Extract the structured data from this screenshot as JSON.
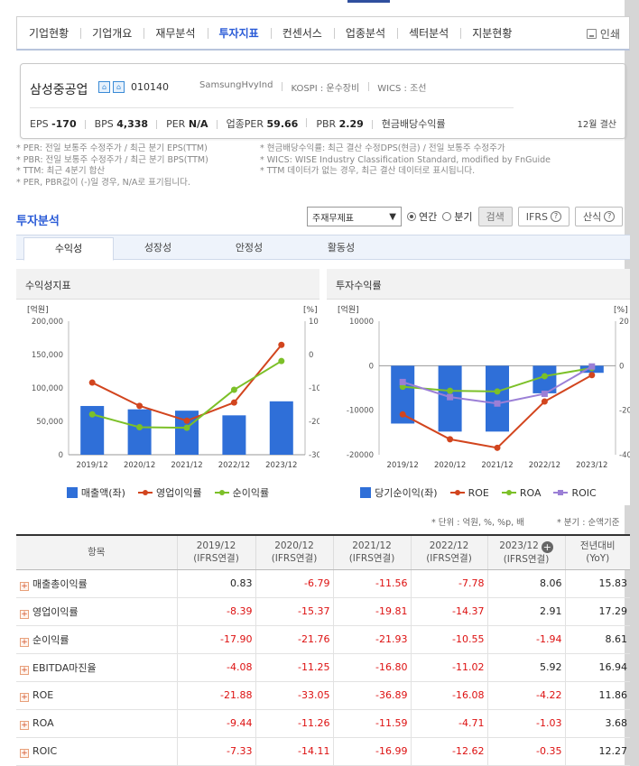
{
  "nav": {
    "tabs": [
      "기업현황",
      "기업개요",
      "재무분석",
      "투자지표",
      "컨센서스",
      "업종분석",
      "섹터분석",
      "지분현황"
    ],
    "active_index": 3,
    "print_label": "인쇄"
  },
  "company": {
    "name": "삼성중공업",
    "code": "010140",
    "eng_name": "SamsungHvyInd",
    "market": "KOSPI : 운수장비",
    "wics": "WICS : 조선",
    "stats": [
      {
        "label": "EPS",
        "value": "-170"
      },
      {
        "label": "BPS",
        "value": "4,338"
      },
      {
        "label": "PER",
        "value": "N/A"
      },
      {
        "label": "업종PER",
        "value": "59.66"
      },
      {
        "label": "PBR",
        "value": "2.29"
      },
      {
        "label": "현금배당수익률",
        "value": ""
      }
    ],
    "settlement": "12월 결산"
  },
  "notes_left": [
    "* PER: 전일 보통주 수정주가 / 최근 분기 EPS(TTM)",
    "* PBR: 전일 보통주 수정주가 / 최근 분기 BPS(TTM)",
    "* TTM: 최근 4분기 합산",
    "* PER, PBR값이 (-)일 경우, N/A로 표기됩니다."
  ],
  "notes_right": [
    "* 현금배당수익률: 최근 결산 수정DPS(현금) / 전일 보통주 수정주가",
    "* WICS: WISE Industry Classification Standard, modified by FnGuide",
    "* TTM 데이터가 없는 경우, 최근 결산 데이터로 표시됩니다."
  ],
  "section": {
    "title": "투자분석",
    "select_value": "주재무제표",
    "radio_annual": "연간",
    "radio_quarter": "분기",
    "search_label": "검색",
    "ifrs_label": "IFRS",
    "formula_label": "산식"
  },
  "subtabs": [
    "수익성",
    "성장성",
    "안정성",
    "활동성"
  ],
  "chart_left": {
    "title": "수익성지표",
    "unit_left": "[억원]",
    "unit_right": "[%]",
    "legend": [
      "매출액(좌)",
      "영업이익률",
      "순이익률"
    ]
  },
  "chart_right": {
    "title": "투자수익률",
    "unit_left": "[억원]",
    "unit_right": "[%]",
    "legend": [
      "당기순이익(좌)",
      "ROE",
      "ROA",
      "ROIC"
    ]
  },
  "colors": {
    "bar": "#2f6fd8",
    "red": "#d2451e",
    "green": "#7cc028",
    "purple": "#9b7fd6",
    "accent": "#2a5bd7"
  },
  "chart_data": [
    {
      "type": "bar",
      "title": "수익성지표",
      "categories": [
        "2019/12",
        "2020/12",
        "2021/12",
        "2022/12",
        "2023/12"
      ],
      "ylim_left": [
        0,
        200000
      ],
      "yticks_left": [
        "200,000",
        "150,000",
        "100,000",
        "50,000",
        "0"
      ],
      "ylim_right": [
        -30,
        10
      ],
      "yticks_right": [
        "10",
        "0",
        "-10",
        "-20",
        "-30"
      ],
      "series": [
        {
          "name": "매출액(좌)",
          "type": "bar",
          "axis": "left",
          "values": [
            73000,
            68000,
            66000,
            59000,
            80000
          ]
        },
        {
          "name": "영업이익률",
          "type": "line",
          "axis": "right",
          "values": [
            -8.39,
            -15.37,
            -19.81,
            -14.37,
            2.91
          ]
        },
        {
          "name": "순이익률",
          "type": "line",
          "axis": "right",
          "values": [
            -17.9,
            -21.76,
            -21.93,
            -10.55,
            -1.94
          ]
        }
      ]
    },
    {
      "type": "bar",
      "title": "투자수익률",
      "categories": [
        "2019/12",
        "2020/12",
        "2021/12",
        "2022/12",
        "2023/12"
      ],
      "ylim_left": [
        -20000,
        10000
      ],
      "yticks_left": [
        "10000",
        "0",
        "-10000",
        "-20000"
      ],
      "ylim_right": [
        -40,
        20
      ],
      "yticks_right": [
        "20",
        "0",
        "-20",
        "-40"
      ],
      "series": [
        {
          "name": "당기순이익(좌)",
          "type": "bar",
          "axis": "left",
          "values": [
            -13000,
            -14800,
            -14800,
            -6200,
            -1600
          ]
        },
        {
          "name": "ROE",
          "type": "line",
          "axis": "right",
          "values": [
            -21.88,
            -33.05,
            -36.89,
            -16.08,
            -4.22
          ]
        },
        {
          "name": "ROA",
          "type": "line",
          "axis": "right",
          "values": [
            -9.44,
            -11.26,
            -11.59,
            -4.71,
            -1.03
          ]
        },
        {
          "name": "ROIC",
          "type": "line",
          "axis": "right",
          "values": [
            -7.33,
            -14.11,
            -16.99,
            -12.62,
            -0.35
          ]
        }
      ]
    }
  ],
  "table": {
    "unit_note": "* 단위 : 억원, %, %p, 배",
    "period_note": "* 분기 : 순액기준",
    "head_item": "항목",
    "columns": [
      {
        "year": "2019/12",
        "basis": "(IFRS연결)"
      },
      {
        "year": "2020/12",
        "basis": "(IFRS연결)"
      },
      {
        "year": "2021/12",
        "basis": "(IFRS연결)"
      },
      {
        "year": "2022/12",
        "basis": "(IFRS연결)"
      },
      {
        "year": "2023/12",
        "basis": "(IFRS연결)"
      }
    ],
    "yoy_head": "전년대비",
    "yoy_sub": "(YoY)",
    "rows": [
      {
        "label": "매출총이익률",
        "values": [
          "0.83",
          "-6.79",
          "-11.56",
          "-7.78",
          "8.06",
          "15.83"
        ]
      },
      {
        "label": "영업이익률",
        "values": [
          "-8.39",
          "-15.37",
          "-19.81",
          "-14.37",
          "2.91",
          "17.29"
        ]
      },
      {
        "label": "순이익률",
        "values": [
          "-17.90",
          "-21.76",
          "-21.93",
          "-10.55",
          "-1.94",
          "8.61"
        ]
      },
      {
        "label": "EBITDA마진율",
        "values": [
          "-4.08",
          "-11.25",
          "-16.80",
          "-11.02",
          "5.92",
          "16.94"
        ]
      },
      {
        "label": "ROE",
        "values": [
          "-21.88",
          "-33.05",
          "-36.89",
          "-16.08",
          "-4.22",
          "11.86"
        ]
      },
      {
        "label": "ROA",
        "values": [
          "-9.44",
          "-11.26",
          "-11.59",
          "-4.71",
          "-1.03",
          "3.68"
        ]
      },
      {
        "label": "ROIC",
        "values": [
          "-7.33",
          "-14.11",
          "-16.99",
          "-12.62",
          "-0.35",
          "12.27"
        ]
      }
    ]
  }
}
